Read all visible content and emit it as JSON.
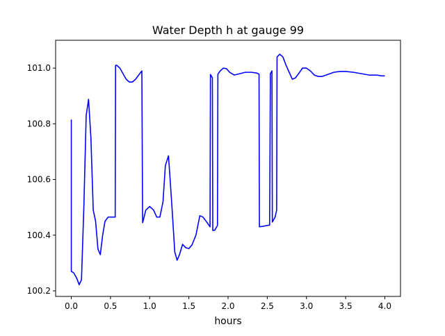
{
  "chart_data": {
    "type": "line",
    "title": "Water Depth h at gauge 99",
    "xlabel": "hours",
    "ylabel": "",
    "xlim": [
      -0.2,
      4.2
    ],
    "ylim": [
      100.18,
      101.1
    ],
    "xticks": [
      0.0,
      0.5,
      1.0,
      1.5,
      2.0,
      2.5,
      3.0,
      3.5,
      4.0
    ],
    "xtick_labels": [
      "0.0",
      "0.5",
      "1.0",
      "1.5",
      "2.0",
      "2.5",
      "3.0",
      "3.5",
      "4.0"
    ],
    "yticks": [
      100.2,
      100.4,
      100.6,
      100.8,
      101.0
    ],
    "ytick_labels": [
      "100.2",
      "100.4",
      "100.6",
      "100.8",
      "101.0"
    ],
    "grid": false,
    "series": [
      {
        "color": "#0000ff",
        "x": [
          0.0,
          0.0,
          0.03,
          0.07,
          0.1,
          0.13,
          0.16,
          0.19,
          0.22,
          0.25,
          0.28,
          0.31,
          0.34,
          0.37,
          0.4,
          0.43,
          0.47,
          0.51,
          0.56,
          0.565,
          0.58,
          0.62,
          0.66,
          0.7,
          0.74,
          0.78,
          0.82,
          0.86,
          0.9,
          0.91,
          0.92,
          0.95,
          1.0,
          1.05,
          1.09,
          1.13,
          1.17,
          1.2,
          1.24,
          1.28,
          1.32,
          1.35,
          1.38,
          1.42,
          1.46,
          1.5,
          1.54,
          1.59,
          1.64,
          1.68,
          1.72,
          1.77,
          1.775,
          1.8,
          1.805,
          1.83,
          1.865,
          1.87,
          1.9,
          1.94,
          1.98,
          2.02,
          2.08,
          2.15,
          2.22,
          2.3,
          2.37,
          2.395,
          2.4,
          2.45,
          2.5,
          2.53,
          2.54,
          2.56,
          2.565,
          2.6,
          2.62,
          2.625,
          2.66,
          2.7,
          2.74,
          2.78,
          2.82,
          2.86,
          2.9,
          2.95,
          3.0,
          3.05,
          3.1,
          3.15,
          3.2,
          3.25,
          3.3,
          3.35,
          3.4,
          3.45,
          3.5,
          3.6,
          3.7,
          3.8,
          3.9,
          3.96,
          4.0
        ],
        "y": [
          100.815,
          100.27,
          100.265,
          100.245,
          100.222,
          100.24,
          100.5,
          100.83,
          100.888,
          100.75,
          100.49,
          100.45,
          100.35,
          100.33,
          100.4,
          100.45,
          100.465,
          100.465,
          100.465,
          101.01,
          101.01,
          101.0,
          100.98,
          100.96,
          100.95,
          100.95,
          100.96,
          100.975,
          100.99,
          100.445,
          100.455,
          100.49,
          100.503,
          100.49,
          100.465,
          100.465,
          100.52,
          100.65,
          100.685,
          100.52,
          100.34,
          100.31,
          100.33,
          100.367,
          100.355,
          100.352,
          100.365,
          100.4,
          100.47,
          100.465,
          100.45,
          100.43,
          100.977,
          100.965,
          100.417,
          100.418,
          100.435,
          100.978,
          100.99,
          101.0,
          100.998,
          100.985,
          100.975,
          100.98,
          100.985,
          100.985,
          100.982,
          100.978,
          100.43,
          100.432,
          100.435,
          100.436,
          100.98,
          100.99,
          100.447,
          100.465,
          100.49,
          101.04,
          101.05,
          101.04,
          101.01,
          100.985,
          100.96,
          100.965,
          100.98,
          101.0,
          101.0,
          100.99,
          100.975,
          100.97,
          100.97,
          100.975,
          100.98,
          100.985,
          100.987,
          100.988,
          100.988,
          100.985,
          100.98,
          100.975,
          100.975,
          100.972,
          100.972
        ]
      }
    ]
  }
}
